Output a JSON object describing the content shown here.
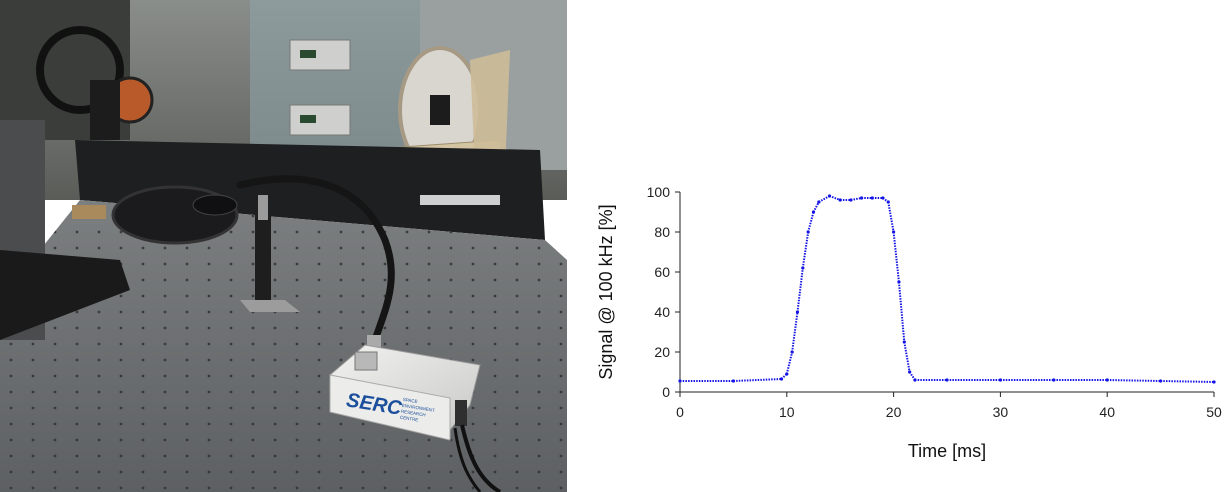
{
  "photo": {
    "logo_text": "SERC",
    "logo_subtext": [
      "SPACE",
      "ENVIRONMENT",
      "RESEARCH",
      "CENTRE"
    ]
  },
  "colors": {
    "series": "#1414e6",
    "axis": "#222222"
  },
  "chart_data": {
    "type": "scatter",
    "xlabel": "Time [ms]",
    "ylabel": "Signal @ 100 kHz [%]",
    "xlim": [
      0,
      50
    ],
    "ylim": [
      0,
      100
    ],
    "xticks": [
      0,
      10,
      20,
      30,
      40,
      50
    ],
    "yticks": [
      0,
      20,
      40,
      60,
      80,
      100
    ],
    "grid": false,
    "legend": "none",
    "series": [
      {
        "x": [
          0,
          5,
          9.5,
          10,
          10.5,
          11,
          11.5,
          12,
          12.5,
          13,
          14,
          15,
          16,
          17,
          18,
          19,
          19.5,
          20,
          20.5,
          21,
          21.5,
          22,
          25,
          30,
          35,
          40,
          45,
          50
        ],
        "y": [
          5.5,
          5.5,
          6.5,
          9,
          20,
          40,
          62,
          80,
          90,
          95,
          98,
          96,
          96,
          97,
          97,
          97,
          95,
          80,
          55,
          25,
          10,
          6,
          6,
          6,
          6,
          6,
          5.5,
          5
        ]
      }
    ]
  }
}
